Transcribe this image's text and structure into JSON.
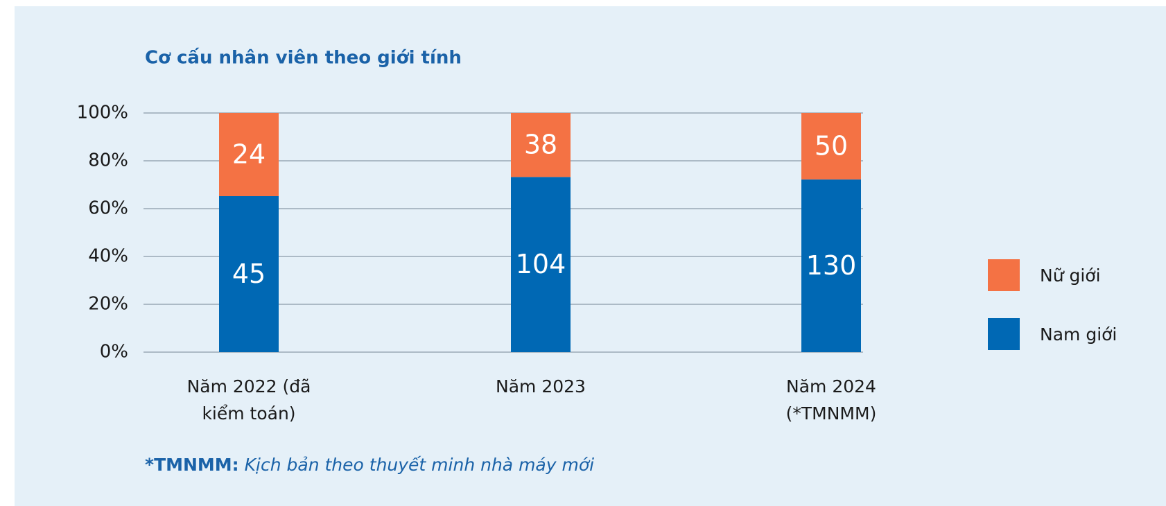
{
  "chart_data": {
    "type": "bar",
    "stacking": "percent",
    "title": "Cơ cấu nhân viên theo giới tính",
    "categories": [
      "Năm 2022 (đã kiểm toán)",
      "Năm 2023",
      "Năm 2024 (*TMNMM)"
    ],
    "series": [
      {
        "name": "Nam giới",
        "color": "#0068b4",
        "values": [
          45,
          104,
          130
        ]
      },
      {
        "name": "Nữ giới",
        "color": "#f47244",
        "values": [
          24,
          38,
          50
        ]
      }
    ],
    "ylim": [
      0,
      100
    ],
    "yticks": [
      {
        "value": 0,
        "label": "0%"
      },
      {
        "value": 20,
        "label": "20%"
      },
      {
        "value": 40,
        "label": "40%"
      },
      {
        "value": 60,
        "label": "60%"
      },
      {
        "value": 80,
        "label": "80%"
      },
      {
        "value": 100,
        "label": "100%"
      }
    ],
    "grid": true,
    "legend": "right",
    "footnote": {
      "term": "*TMNMM:",
      "text": "Kịch bản theo thuyết minh nhà máy mới"
    }
  }
}
